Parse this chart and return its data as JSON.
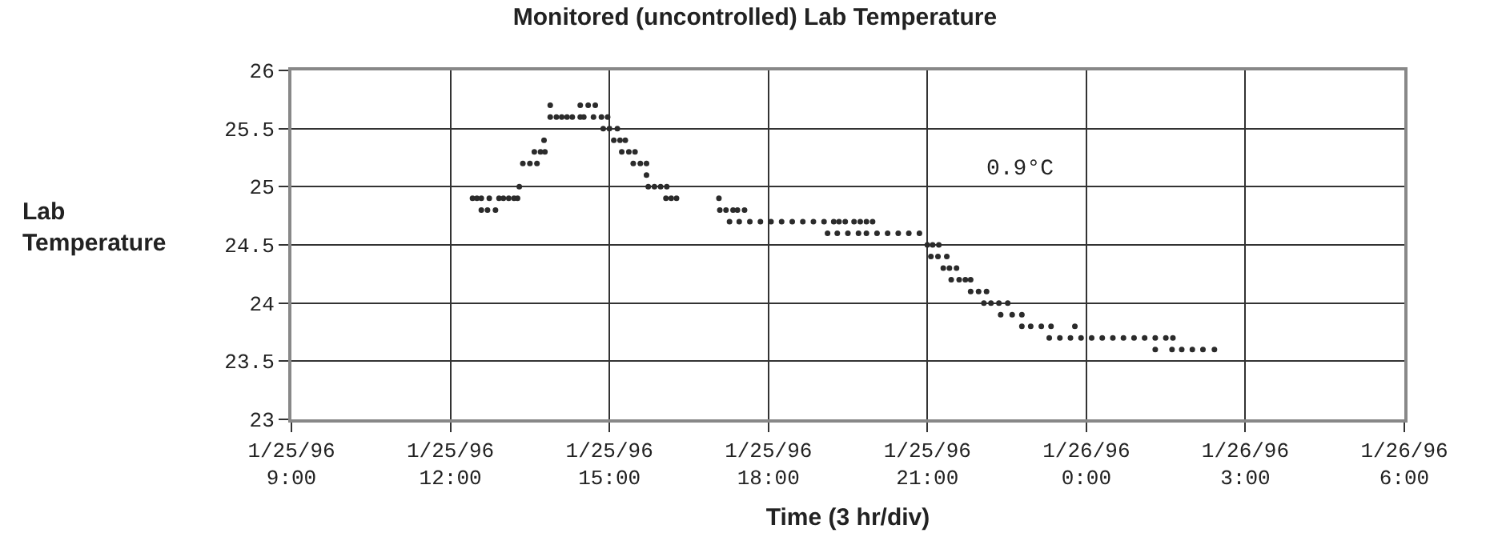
{
  "chart_data": {
    "type": "scatter",
    "title": "Monitored (uncontrolled) Lab Temperature",
    "xlabel": "Time (3 hr/div)",
    "ylabel": "Lab\nTemperature",
    "series": [
      {
        "color": "#2b2b2b",
        "x": [
          "1996-01-25T12:25",
          "1996-01-25T12:30",
          "1996-01-25T12:35",
          "1996-01-25T12:35",
          "1996-01-25T12:42",
          "1996-01-25T12:51",
          "1996-01-25T12:44",
          "1996-01-25T12:55",
          "1996-01-25T13:00",
          "1996-01-25T13:06",
          "1996-01-25T13:12",
          "1996-01-25T13:16",
          "1996-01-25T13:18",
          "1996-01-25T13:22",
          "1996-01-25T13:30",
          "1996-01-25T13:38",
          "1996-01-25T13:35",
          "1996-01-25T13:42",
          "1996-01-25T13:47",
          "1996-01-25T13:46",
          "1996-01-25T13:53",
          "1996-01-25T13:53",
          "1996-01-25T14:00",
          "1996-01-25T14:06",
          "1996-01-25T14:12",
          "1996-01-25T14:18",
          "1996-01-25T14:27",
          "1996-01-25T14:31",
          "1996-01-25T14:27",
          "1996-01-25T14:36",
          "1996-01-25T14:44",
          "1996-01-25T14:42",
          "1996-01-25T14:51",
          "1996-01-25T14:58",
          "1996-01-25T14:53",
          "1996-01-25T15:00",
          "1996-01-25T15:09",
          "1996-01-25T15:05",
          "1996-01-25T15:12",
          "1996-01-25T15:18",
          "1996-01-25T15:14",
          "1996-01-25T15:22",
          "1996-01-25T15:29",
          "1996-01-25T15:27",
          "1996-01-25T15:35",
          "1996-01-25T15:42",
          "1996-01-25T15:42",
          "1996-01-25T15:44",
          "1996-01-25T15:51",
          "1996-01-25T15:58",
          "1996-01-25T16:05",
          "1996-01-25T16:04",
          "1996-01-25T16:10",
          "1996-01-25T16:16",
          "1996-01-25T17:04",
          "1996-01-25T17:05",
          "1996-01-25T17:12",
          "1996-01-25T17:20",
          "1996-01-25T17:25",
          "1996-01-25T17:33",
          "1996-01-25T17:16",
          "1996-01-25T17:27",
          "1996-01-25T17:39",
          "1996-01-25T17:51",
          "1996-01-25T18:03",
          "1996-01-25T18:15",
          "1996-01-25T18:27",
          "1996-01-25T18:39",
          "1996-01-25T18:51",
          "1996-01-25T19:03",
          "1996-01-25T19:14",
          "1996-01-25T19:20",
          "1996-01-25T19:27",
          "1996-01-25T19:37",
          "1996-01-25T19:44",
          "1996-01-25T19:51",
          "1996-01-25T19:58",
          "1996-01-25T19:07",
          "1996-01-25T19:18",
          "1996-01-25T19:30",
          "1996-01-25T19:42",
          "1996-01-25T19:51",
          "1996-01-25T20:03",
          "1996-01-25T20:15",
          "1996-01-25T20:27",
          "1996-01-25T20:39",
          "1996-01-25T20:51",
          "1996-01-25T21:00",
          "1996-01-25T21:06",
          "1996-01-25T21:13",
          "1996-01-25T21:04",
          "1996-01-25T21:12",
          "1996-01-25T21:22",
          "1996-01-25T21:18",
          "1996-01-25T21:25",
          "1996-01-25T21:33",
          "1996-01-25T21:27",
          "1996-01-25T21:36",
          "1996-01-25T21:43",
          "1996-01-25T21:49",
          "1996-01-25T21:49",
          "1996-01-25T21:58",
          "1996-01-25T22:07",
          "1996-01-25T22:04",
          "1996-01-25T22:12",
          "1996-01-25T22:21",
          "1996-01-25T22:31",
          "1996-01-25T22:23",
          "1996-01-25T22:36",
          "1996-01-25T22:47",
          "1996-01-25T22:47",
          "1996-01-25T22:57",
          "1996-01-25T23:09",
          "1996-01-25T23:20",
          "1996-01-25T23:47",
          "1996-01-25T23:18",
          "1996-01-25T23:30",
          "1996-01-25T23:42",
          "1996-01-25T23:54",
          "1996-01-26T00:06",
          "1996-01-26T00:18",
          "1996-01-26T00:30",
          "1996-01-26T00:42",
          "1996-01-26T00:54",
          "1996-01-26T01:06",
          "1996-01-26T01:18",
          "1996-01-26T01:30",
          "1996-01-26T01:38",
          "1996-01-26T01:18",
          "1996-01-26T01:37",
          "1996-01-26T01:48",
          "1996-01-26T02:00",
          "1996-01-26T02:12",
          "1996-01-26T02:25"
        ],
        "values": [
          24.9,
          24.9,
          24.9,
          24.8,
          24.8,
          24.8,
          24.9,
          24.9,
          24.9,
          24.9,
          24.9,
          24.9,
          25.0,
          25.2,
          25.2,
          25.2,
          25.3,
          25.3,
          25.3,
          25.4,
          25.7,
          25.6,
          25.6,
          25.6,
          25.6,
          25.6,
          25.6,
          25.6,
          25.7,
          25.7,
          25.7,
          25.6,
          25.6,
          25.6,
          25.5,
          25.5,
          25.5,
          25.4,
          25.4,
          25.4,
          25.3,
          25.3,
          25.3,
          25.2,
          25.2,
          25.2,
          25.1,
          25.0,
          25.0,
          25.0,
          25.0,
          24.9,
          24.9,
          24.9,
          24.9,
          24.8,
          24.8,
          24.8,
          24.8,
          24.8,
          24.7,
          24.7,
          24.7,
          24.7,
          24.7,
          24.7,
          24.7,
          24.7,
          24.7,
          24.7,
          24.7,
          24.7,
          24.7,
          24.7,
          24.7,
          24.7,
          24.7,
          24.6,
          24.6,
          24.6,
          24.6,
          24.6,
          24.6,
          24.6,
          24.6,
          24.6,
          24.6,
          24.5,
          24.5,
          24.5,
          24.4,
          24.4,
          24.4,
          24.3,
          24.3,
          24.3,
          24.2,
          24.2,
          24.2,
          24.2,
          24.1,
          24.1,
          24.1,
          24.0,
          24.0,
          24.0,
          24.0,
          23.9,
          23.9,
          23.9,
          23.8,
          23.8,
          23.8,
          23.8,
          23.8,
          23.7,
          23.7,
          23.7,
          23.7,
          23.7,
          23.7,
          23.7,
          23.7,
          23.7,
          23.7,
          23.7,
          23.7,
          23.7,
          23.6,
          23.6,
          23.6,
          23.6,
          23.6,
          23.6
        ]
      }
    ],
    "xlim": [
      "1996-01-25T09:00",
      "1996-01-26T06:00"
    ],
    "xticks": [
      {
        "value": "1996-01-25T09:00",
        "label": "1/25/96\n9:00"
      },
      {
        "value": "1996-01-25T12:00",
        "label": "1/25/96\n12:00"
      },
      {
        "value": "1996-01-25T15:00",
        "label": "1/25/96\n15:00"
      },
      {
        "value": "1996-01-25T18:00",
        "label": "1/25/96\n18:00"
      },
      {
        "value": "1996-01-25T21:00",
        "label": "1/25/96\n21:00"
      },
      {
        "value": "1996-01-26T00:00",
        "label": "1/26/96\n0:00"
      },
      {
        "value": "1996-01-26T03:00",
        "label": "1/26/96\n3:00"
      },
      {
        "value": "1996-01-26T06:00",
        "label": "1/26/96\n6:00"
      }
    ],
    "ylim": [
      23,
      26
    ],
    "yticks": [
      23,
      23.5,
      24,
      24.5,
      25,
      25.5,
      26
    ],
    "annotations": [
      "0.9°C"
    ],
    "grid": true,
    "marker": "circle"
  }
}
